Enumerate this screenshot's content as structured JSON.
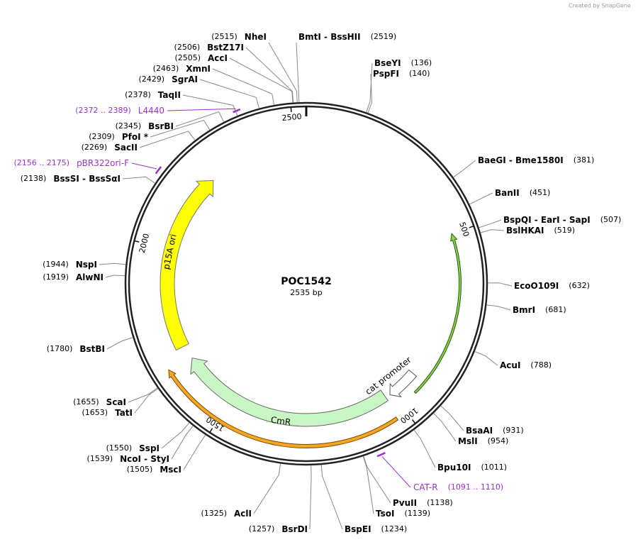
{
  "watermark": "Created by SnapGene",
  "name": "POC1542",
  "size": "2535 bp",
  "ticks": [
    500,
    1000,
    1500,
    2000,
    2500
  ],
  "sites": [
    {
      "pos": "(2515)",
      "name": "NheI"
    },
    {
      "pos": "(2519)",
      "name": "BmtI  -  BssHII"
    },
    {
      "pos": "(136)",
      "name": "BseYI"
    },
    {
      "pos": "(140)",
      "name": "PspFI"
    },
    {
      "pos": "(381)",
      "name": "BaeGI  -  Bme1580I"
    },
    {
      "pos": "(451)",
      "name": "BanII"
    },
    {
      "pos": "(507)",
      "name": "BspQI  -  EarI  -  SapI"
    },
    {
      "pos": "(519)",
      "name": "BslHKAI"
    },
    {
      "pos": "(632)",
      "name": "EcoO109I"
    },
    {
      "pos": "(681)",
      "name": "BmrI"
    },
    {
      "pos": "(788)",
      "name": "AcuI"
    },
    {
      "pos": "(931)",
      "name": "BsaAI"
    },
    {
      "pos": "(954)",
      "name": "MslI"
    },
    {
      "pos": "(1011)",
      "name": "Bpu10I"
    },
    {
      "pos": "(1138)",
      "name": "PvuII"
    },
    {
      "pos": "(1139)",
      "name": "TsoI"
    },
    {
      "pos": "(1234)",
      "name": "BspEI"
    },
    {
      "pos": "(1257)",
      "name": "BsrDI"
    },
    {
      "pos": "(1325)",
      "name": "AclI"
    },
    {
      "pos": "(1505)",
      "name": "MscI"
    },
    {
      "pos": "(1539)",
      "name": "NcoI  -  StyI"
    },
    {
      "pos": "(1550)",
      "name": "SspI"
    },
    {
      "pos": "(1653)",
      "name": "TatI"
    },
    {
      "pos": "(1655)",
      "name": "ScaI"
    },
    {
      "pos": "(1780)",
      "name": "BstBI"
    },
    {
      "pos": "(1919)",
      "name": "AlwNI"
    },
    {
      "pos": "(1944)",
      "name": "NspI"
    },
    {
      "pos": "(2138)",
      "name": "BssSI  -  BssSαI"
    },
    {
      "pos": "(2269)",
      "name": "SacII"
    },
    {
      "pos": "(2309)",
      "name": "PfoI *"
    },
    {
      "pos": "(2345)",
      "name": "BsrBI"
    },
    {
      "pos": "(2378)",
      "name": "TaqII"
    },
    {
      "pos": "(2429)",
      "name": "SgrAI"
    },
    {
      "pos": "(2463)",
      "name": "XmnI"
    },
    {
      "pos": "(2505)",
      "name": "AccI"
    },
    {
      "pos": "(2506)",
      "name": "BstZ17I"
    }
  ],
  "primers": [
    {
      "name": "L4440",
      "range": "(2372 .. 2389)"
    },
    {
      "name": "pBR322ori-F",
      "range": "(2156 .. 2175)"
    },
    {
      "name": "CAT-R",
      "range": "(1091 .. 1110)"
    }
  ],
  "features": [
    {
      "name": "p15A ori"
    },
    {
      "name": "CmR"
    },
    {
      "name": "cat promoter"
    }
  ]
}
